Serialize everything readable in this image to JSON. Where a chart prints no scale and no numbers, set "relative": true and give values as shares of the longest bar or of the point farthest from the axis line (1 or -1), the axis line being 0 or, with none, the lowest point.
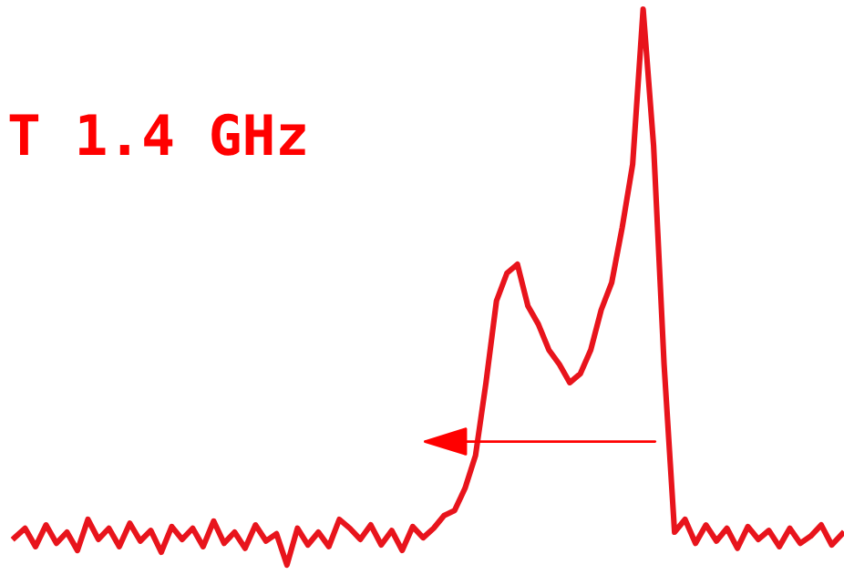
{
  "chart_data": {
    "type": "line",
    "title": "T 1.4 GHz",
    "relative": true,
    "color": "#e8141c",
    "categories": [
      null,
      null,
      null,
      null,
      null,
      null,
      null,
      null,
      null,
      null,
      null,
      null,
      null,
      null,
      null,
      null,
      null,
      null,
      null,
      null,
      null,
      null,
      null,
      null,
      null,
      null,
      null,
      null,
      null,
      null,
      null,
      null,
      null,
      null,
      null,
      null,
      null,
      null,
      null,
      null,
      null,
      null,
      null,
      null,
      null,
      null,
      null,
      null,
      null,
      null,
      null,
      null,
      null,
      null,
      null,
      null,
      null,
      null,
      null,
      null,
      null,
      null,
      null,
      null,
      null,
      null,
      null,
      null,
      null,
      null,
      null,
      null,
      null,
      null,
      null,
      null,
      null,
      null,
      null,
      null
    ],
    "values": [
      0.049,
      0.066,
      0.033,
      0.072,
      0.039,
      0.059,
      0.026,
      0.082,
      0.046,
      0.066,
      0.033,
      0.075,
      0.043,
      0.062,
      0.023,
      0.069,
      0.046,
      0.066,
      0.033,
      0.079,
      0.039,
      0.059,
      0.03,
      0.072,
      0.043,
      0.056,
      0,
      0.066,
      0.036,
      0.059,
      0.033,
      0.082,
      0.066,
      0.046,
      0.072,
      0.036,
      0.062,
      0.026,
      0.069,
      0.049,
      0.066,
      0.089,
      0.098,
      0.138,
      0.197,
      0.328,
      0.475,
      0.525,
      0.541,
      0.466,
      0.433,
      0.387,
      0.361,
      0.328,
      0.344,
      0.387,
      0.459,
      0.508,
      0.607,
      0.721,
      1,
      0.754,
      0.361,
      0.059,
      0.082,
      0.039,
      0.072,
      0.043,
      0.066,
      0.03,
      0.069,
      0.046,
      0.062,
      0.033,
      0.066,
      0.039,
      0.052,
      0.072,
      0.036,
      0.056
    ]
  }
}
